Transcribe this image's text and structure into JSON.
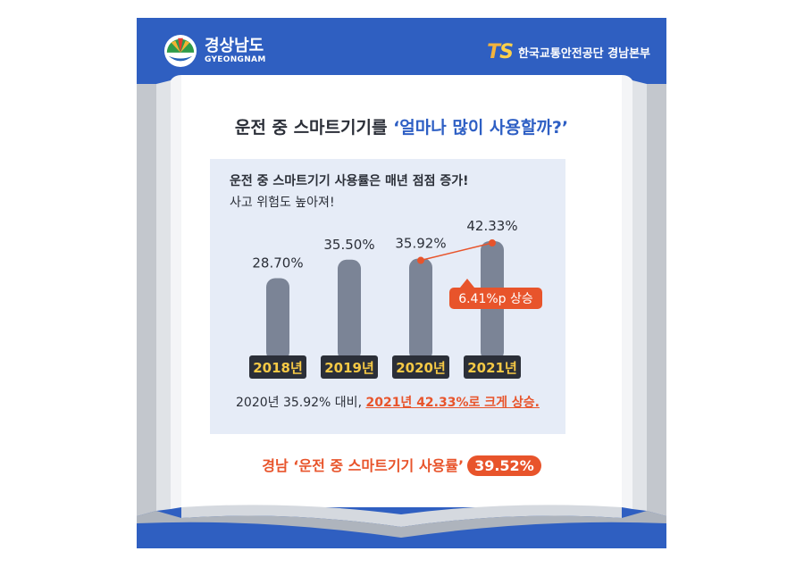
{
  "logos": {
    "left_ko": "경상남도",
    "left_en": "GYEONGNAM",
    "right_mark_t": "T",
    "right_mark_s": "S",
    "right_org": "한국교통안전공단 경남본부"
  },
  "headline": {
    "prefix": "운전 중 스마트기기를 ",
    "accent": "‘얼마나 많이 사용할까?’"
  },
  "panel": {
    "title_line1": "운전 중 스마트기기 사용률은 매년 점점 증가!",
    "title_line2": "사고 위험도 높아져!",
    "summary_prefix": "2020년 35.92% 대비, ",
    "summary_highlight": "2021년 42.33%로 크게 상승."
  },
  "chart_data": {
    "type": "bar",
    "categories": [
      "2018년",
      "2019년",
      "2020년",
      "2021년"
    ],
    "values": [
      28.7,
      35.5,
      35.92,
      42.33
    ],
    "value_labels": [
      "28.70%",
      "35.50%",
      "35.92%",
      "42.33%"
    ],
    "annotation": "6.41%p 상승",
    "bar_color": "#7b8496",
    "label_bg_color": "#2b2f38",
    "label_text_color": "#f6c945",
    "accent_color": "#e8542b"
  },
  "footer": {
    "prefix": "경남 ‘운전 중 스마트기기 사용률’",
    "value": "39.52%"
  }
}
